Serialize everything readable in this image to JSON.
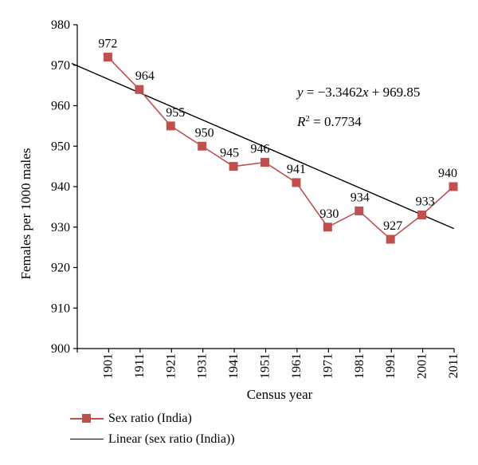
{
  "chart_data": {
    "type": "line",
    "xlabel": "Census year",
    "ylabel": "Females per 1000 males",
    "ylim": [
      900,
      980
    ],
    "yticks": [
      "900",
      "910",
      "920",
      "930",
      "940",
      "950",
      "960",
      "970",
      "980"
    ],
    "categories": [
      "1901",
      "1911",
      "1921",
      "1931",
      "1941",
      "1951",
      "1961",
      "1971",
      "1981",
      "1991",
      "2001",
      "2011"
    ],
    "series": [
      {
        "name": "Sex ratio (India)",
        "color": "#c0504d",
        "marker": "square",
        "values": [
          972,
          964,
          955,
          950,
          945,
          946,
          941,
          930,
          934,
          927,
          933,
          940
        ],
        "labels": [
          "972",
          "964",
          "955",
          "950",
          "945",
          "946",
          "941",
          "930",
          "934",
          "927",
          "933",
          "940"
        ]
      },
      {
        "name": "Linear (sex ratio (India))",
        "color": "#000000",
        "type": "trendline",
        "slope": -3.3462,
        "intercept": 969.85
      }
    ],
    "annotations": {
      "equation": "y = −3.3462x + 969.85",
      "r2": "R2 = 0.7734"
    },
    "legend_position": "bottom-left",
    "grid": false
  }
}
